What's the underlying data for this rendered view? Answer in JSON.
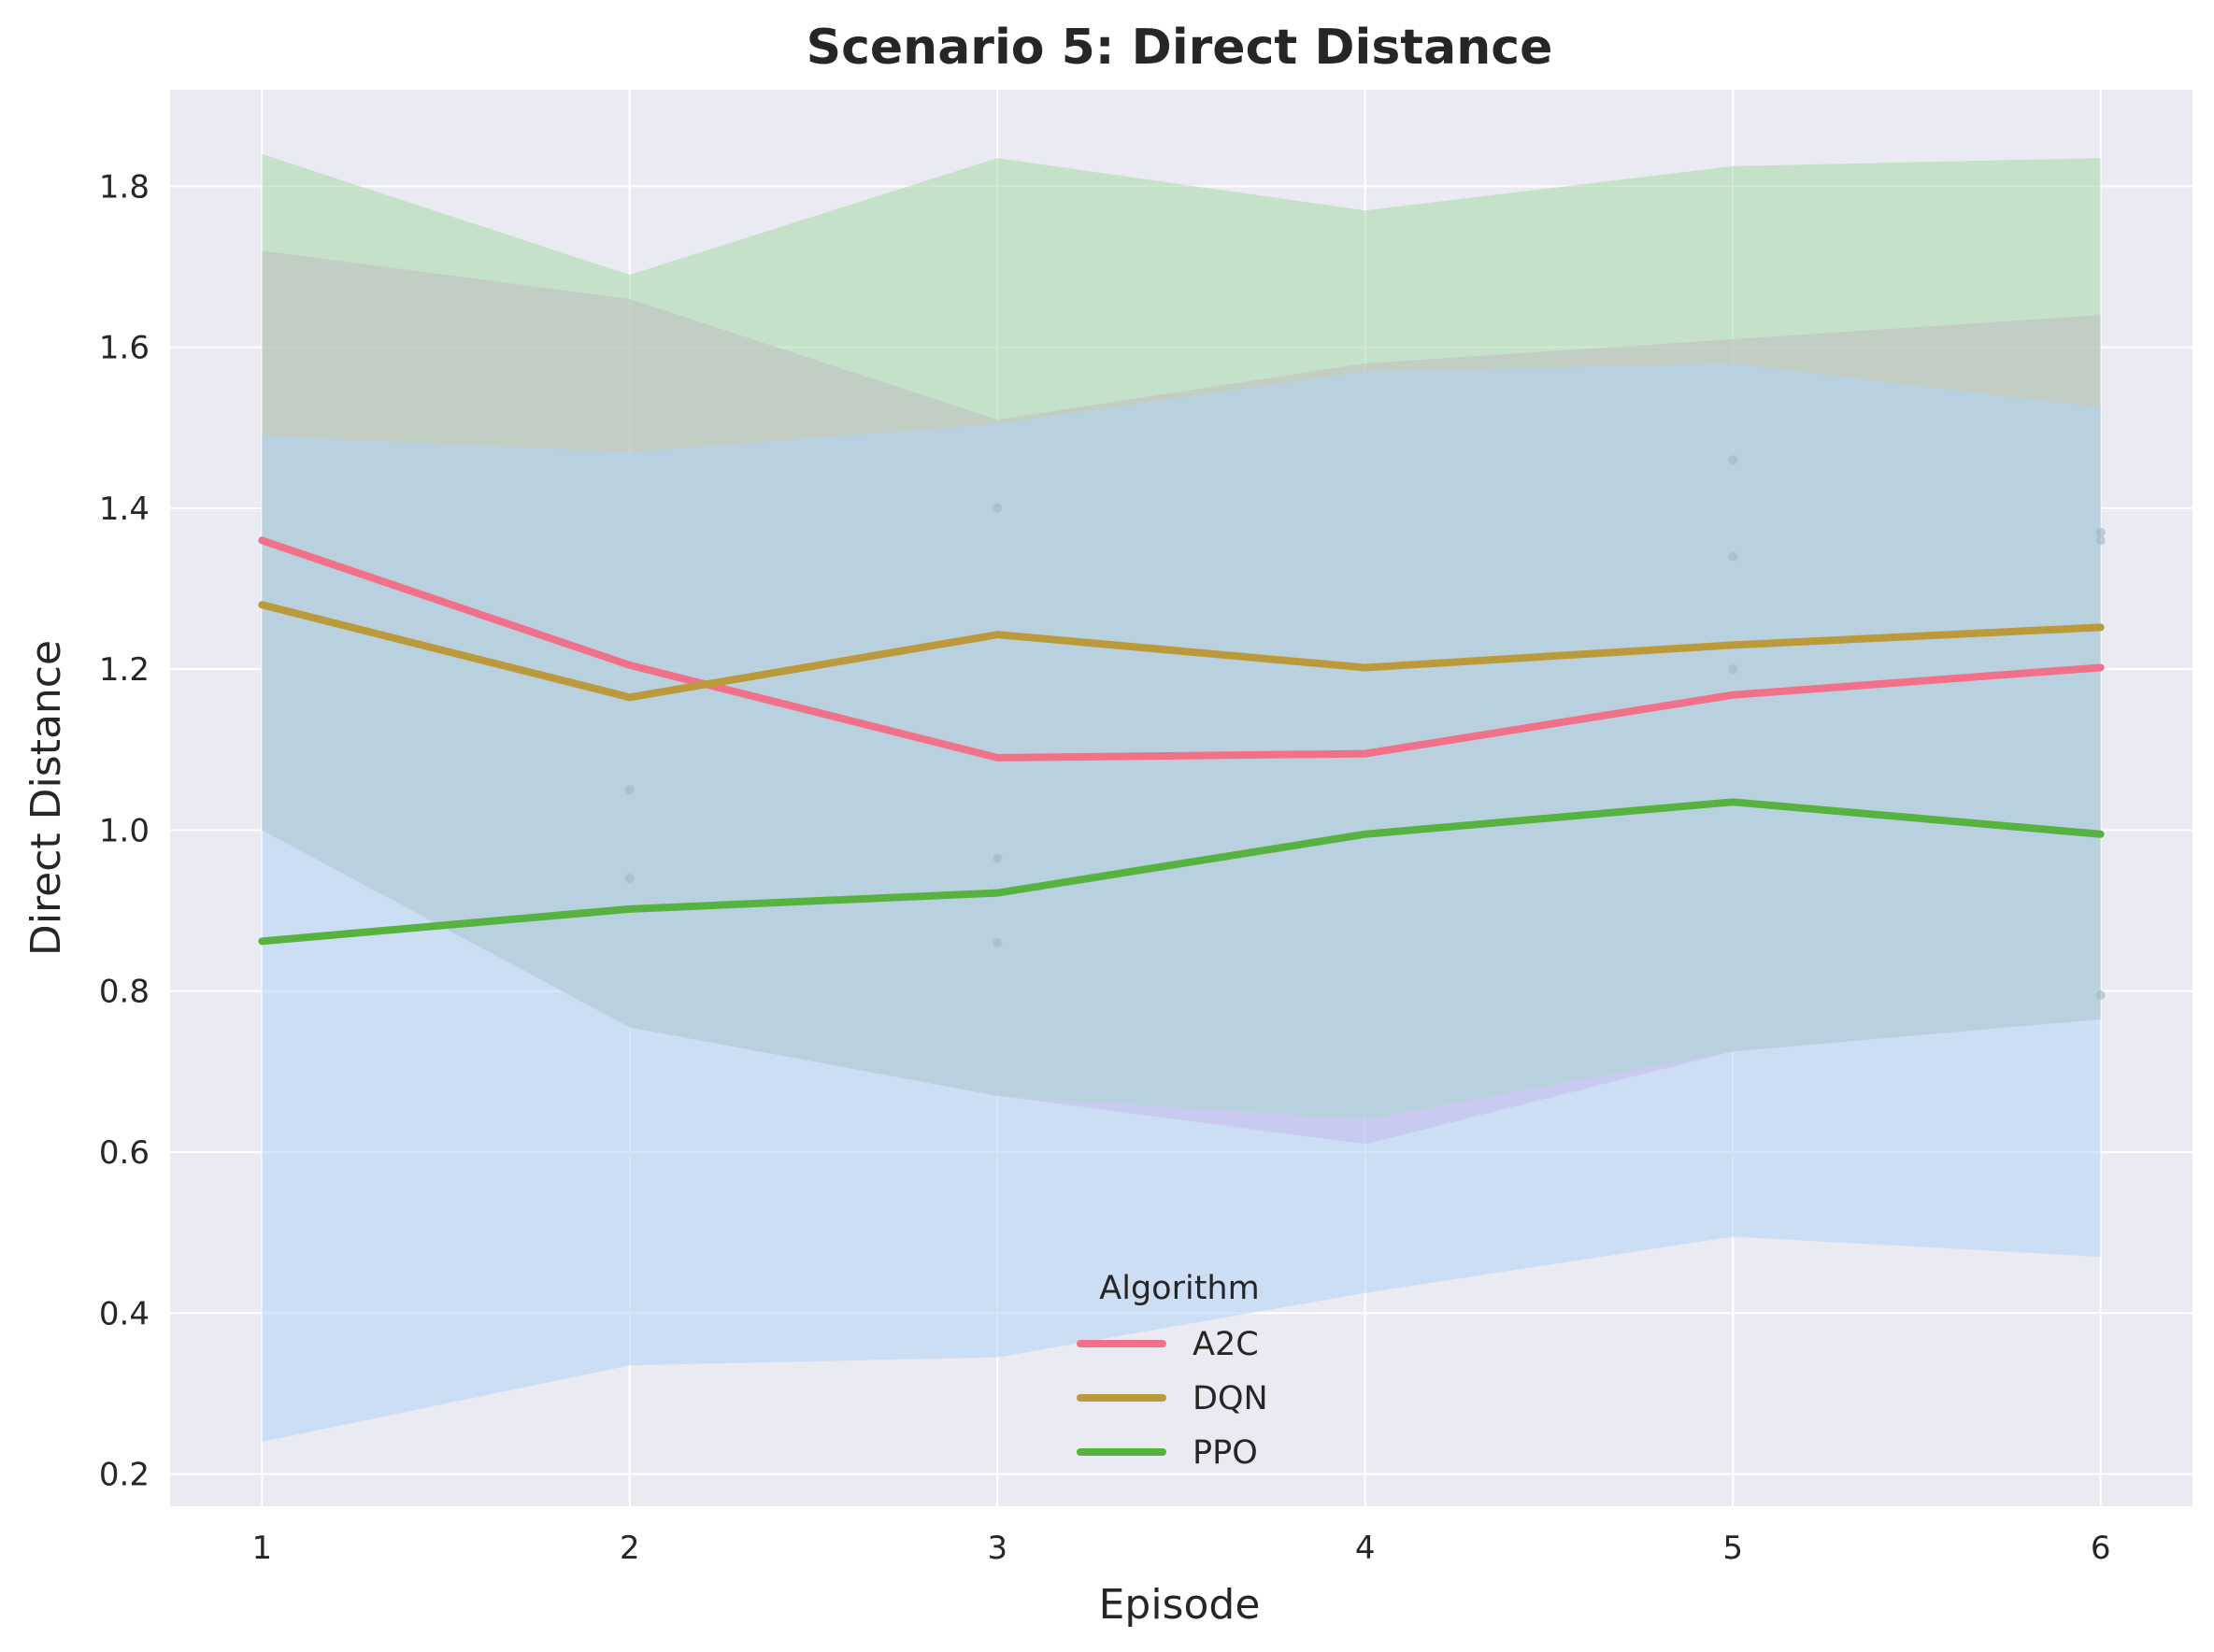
{
  "chart_data": {
    "type": "line",
    "title": "Scenario 5: Direct Distance",
    "xlabel": "Episode",
    "ylabel": "Direct Distance",
    "x": [
      1,
      2,
      3,
      4,
      5,
      6
    ],
    "xlim": [
      0.75,
      6.25
    ],
    "ylim": [
      0.16,
      1.92
    ],
    "yticks": [
      0.2,
      0.4,
      0.6,
      0.8,
      1.0,
      1.2,
      1.4,
      1.6,
      1.8
    ],
    "ytick_labels": [
      "0.2",
      "0.4",
      "0.6",
      "0.8",
      "1.0",
      "1.2",
      "1.4",
      "1.6",
      "1.8"
    ],
    "xticks": [
      1,
      2,
      3,
      4,
      5,
      6
    ],
    "xtick_labels": [
      "1",
      "2",
      "3",
      "4",
      "5",
      "6"
    ],
    "grid": true,
    "background": "#eaeaf2",
    "legend": {
      "title": "Algorithm",
      "placement": "lower center"
    },
    "series": [
      {
        "name": "A2C",
        "color": "#f07189",
        "values": [
          1.36,
          1.205,
          1.09,
          1.095,
          1.168,
          1.202
        ],
        "band_lower": [
          1.0,
          0.755,
          0.67,
          0.61,
          0.725,
          0.765
        ],
        "band_upper": [
          1.72,
          1.66,
          1.51,
          1.58,
          1.61,
          1.64
        ],
        "band_color": "#dda0dd"
      },
      {
        "name": "DQN",
        "color": "#bb9a3b",
        "values": [
          1.28,
          1.165,
          1.243,
          1.202,
          1.23,
          1.252
        ],
        "band_lower": [
          1.0,
          0.755,
          0.67,
          0.64,
          0.725,
          0.765
        ],
        "band_upper": [
          1.84,
          1.69,
          1.835,
          1.77,
          1.825,
          1.835
        ],
        "band_color": "#a8d8a8"
      },
      {
        "name": "PPO",
        "color": "#57b240",
        "values": [
          0.862,
          0.902,
          0.922,
          0.995,
          1.035,
          0.995
        ],
        "band_lower": [
          0.24,
          0.335,
          0.345,
          0.425,
          0.495,
          0.47
        ],
        "band_upper": [
          1.49,
          1.47,
          1.505,
          1.57,
          1.58,
          1.525
        ],
        "band_color": "#b3d4f5"
      }
    ],
    "scatter_points": [
      {
        "x": 2,
        "y": 1.05
      },
      {
        "x": 2,
        "y": 0.94
      },
      {
        "x": 3,
        "y": 1.4
      },
      {
        "x": 3,
        "y": 0.965
      },
      {
        "x": 3,
        "y": 0.86
      },
      {
        "x": 5,
        "y": 1.46
      },
      {
        "x": 5,
        "y": 1.34
      },
      {
        "x": 5,
        "y": 1.2
      },
      {
        "x": 6,
        "y": 1.37
      },
      {
        "x": 6,
        "y": 1.36
      },
      {
        "x": 6,
        "y": 0.795
      }
    ]
  }
}
